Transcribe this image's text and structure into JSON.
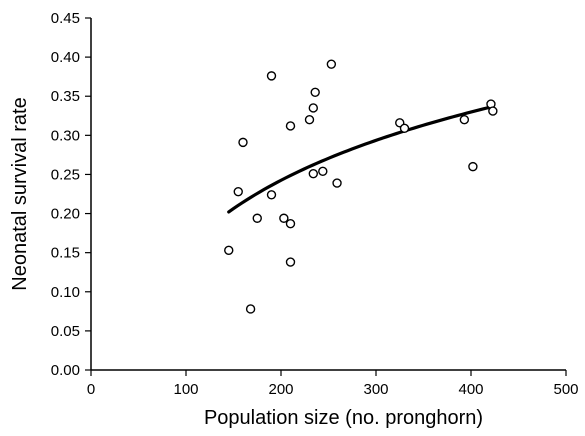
{
  "chart_data": {
    "type": "scatter",
    "title": "",
    "xlabel": "Population size (no. pronghorn)",
    "ylabel": "Neonatal survival rate",
    "xlim": [
      0,
      500
    ],
    "ylim": [
      0,
      0.45
    ],
    "x_ticks": [
      0,
      100,
      200,
      300,
      400,
      500
    ],
    "y_ticks": [
      0.0,
      0.05,
      0.1,
      0.15,
      0.2,
      0.25,
      0.3,
      0.35,
      0.4,
      0.45
    ],
    "x_tick_labels": [
      "0",
      "100",
      "200",
      "300",
      "400",
      "500"
    ],
    "y_tick_labels": [
      "0.00",
      "0.05",
      "0.10",
      "0.15",
      "0.20",
      "0.25",
      "0.30",
      "0.35",
      "0.40",
      "0.45"
    ],
    "grid": false,
    "legend": "none",
    "points": [
      {
        "x": 145,
        "y": 0.153
      },
      {
        "x": 155,
        "y": 0.228
      },
      {
        "x": 160,
        "y": 0.291
      },
      {
        "x": 168,
        "y": 0.078
      },
      {
        "x": 175,
        "y": 0.194
      },
      {
        "x": 190,
        "y": 0.376
      },
      {
        "x": 190,
        "y": 0.224
      },
      {
        "x": 203,
        "y": 0.194
      },
      {
        "x": 210,
        "y": 0.312
      },
      {
        "x": 210,
        "y": 0.187
      },
      {
        "x": 210,
        "y": 0.138
      },
      {
        "x": 230,
        "y": 0.32
      },
      {
        "x": 234,
        "y": 0.335
      },
      {
        "x": 236,
        "y": 0.355
      },
      {
        "x": 234,
        "y": 0.251
      },
      {
        "x": 244,
        "y": 0.254
      },
      {
        "x": 253,
        "y": 0.391
      },
      {
        "x": 259,
        "y": 0.239
      },
      {
        "x": 325,
        "y": 0.316
      },
      {
        "x": 330,
        "y": 0.309
      },
      {
        "x": 393,
        "y": 0.32
      },
      {
        "x": 402,
        "y": 0.26
      },
      {
        "x": 421,
        "y": 0.34
      },
      {
        "x": 423,
        "y": 0.331
      }
    ],
    "trendline": {
      "type": "logarithmic",
      "x_range": [
        145,
        423
      ],
      "points": [
        {
          "x": 145,
          "y": 0.203
        },
        {
          "x": 175,
          "y": 0.226
        },
        {
          "x": 200,
          "y": 0.241
        },
        {
          "x": 250,
          "y": 0.27
        },
        {
          "x": 300,
          "y": 0.294
        },
        {
          "x": 350,
          "y": 0.313
        },
        {
          "x": 400,
          "y": 0.33
        },
        {
          "x": 423,
          "y": 0.337
        }
      ]
    }
  }
}
